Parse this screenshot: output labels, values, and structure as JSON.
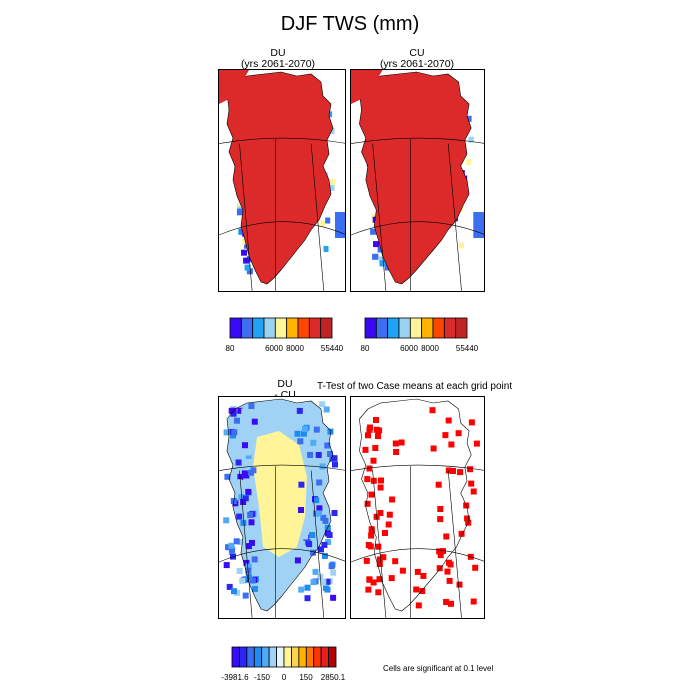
{
  "figure": {
    "title": "DJF TWS (mm)"
  },
  "chart_data": [
    {
      "type": "heatmap",
      "name": "DU",
      "title_lines": [
        "DU",
        "(yrs 2061-2070)"
      ],
      "region": "Greenland",
      "dominant_class": "above 55440",
      "colorbar": {
        "colors": [
          "#3b0af5",
          "#3b6ef0",
          "#1ea3f5",
          "#9ad2f0",
          "#fff598",
          "#ffb400",
          "#ff4600",
          "#dc2a2a",
          "#c02424"
        ],
        "tick_labels": [
          "80",
          "6000",
          "8000",
          "55440"
        ]
      }
    },
    {
      "type": "heatmap",
      "name": "CU",
      "title_lines": [
        "CU",
        "(yrs 2061-2070)"
      ],
      "region": "Greenland",
      "dominant_class": "above 55440",
      "colorbar": {
        "colors": [
          "#3b0af5",
          "#3b6ef0",
          "#1ea3f5",
          "#9ad2f0",
          "#fff598",
          "#ffb400",
          "#ff4600",
          "#dc2a2a",
          "#c02424"
        ],
        "tick_labels": [
          "80",
          "6000",
          "8000",
          "55440"
        ]
      }
    },
    {
      "type": "heatmap",
      "name": "DU - CU",
      "title_lines": [
        "DU",
        "- CU"
      ],
      "region": "Greenland",
      "colorbar": {
        "colors": [
          "#3b0af5",
          "#2a28f0",
          "#3b6ef0",
          "#1e8cf0",
          "#50aaf5",
          "#a0d2f5",
          "#e6f5fa",
          "#fff598",
          "#ffd250",
          "#ffb400",
          "#ff7800",
          "#ff3200",
          "#e61e1e",
          "#b40000"
        ],
        "tick_labels": [
          "-3981.6",
          "-150",
          "0",
          "150",
          "2850.1"
        ]
      }
    },
    {
      "type": "heatmap",
      "name": "T-Test",
      "title": "T-Test of two Case means at each grid point",
      "significance_color": "#ff0000",
      "note": "Cells are significant at 0.1 level"
    }
  ]
}
